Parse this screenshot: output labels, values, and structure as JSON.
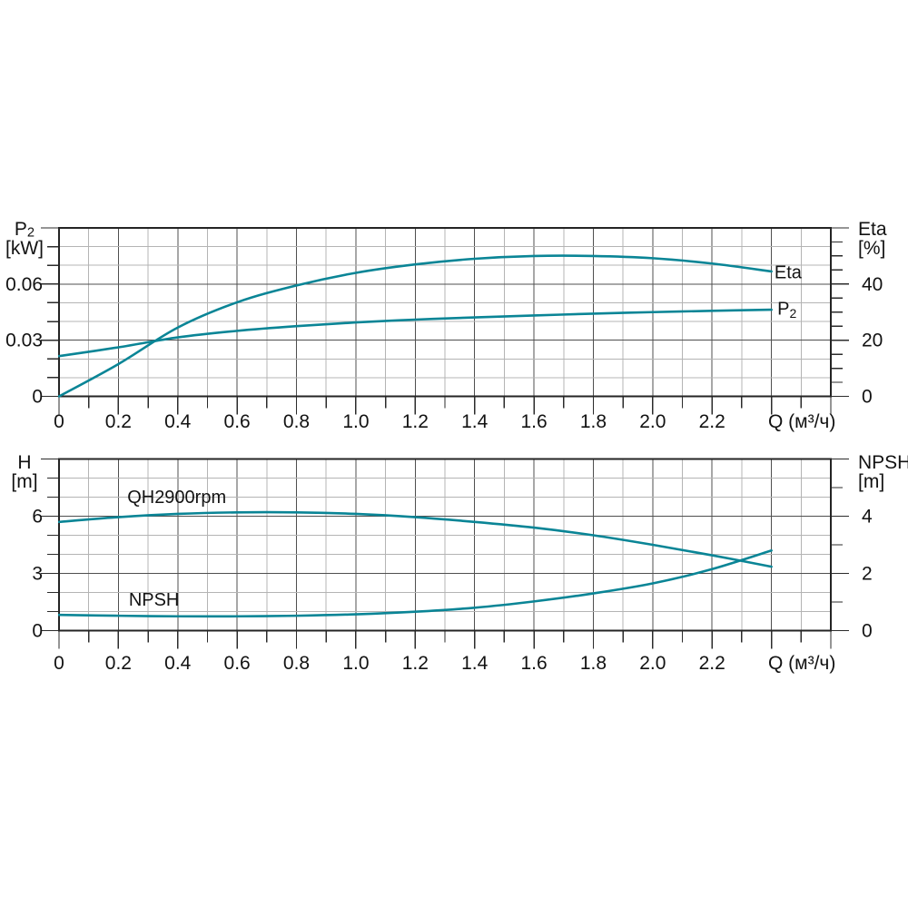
{
  "figure": {
    "background": "#ffffff",
    "curve_color": "#0a8596",
    "grid_minor_color": "#b4b4b4",
    "grid_major_color": "#4f4f4f",
    "border_color": "#242424",
    "tick_color": "#2b2b2b",
    "text_color": "#121212"
  },
  "chart_data": [
    {
      "type": "line",
      "name": "power-efficiency-chart",
      "x_axis": {
        "label": "Q (м³/ч)",
        "min": 0,
        "max": 2.6,
        "minor_step": 0.1,
        "major_step": 0.2,
        "ticks": [
          {
            "v": 0,
            "t": "0"
          },
          {
            "v": 0.2,
            "t": "0.2"
          },
          {
            "v": 0.4,
            "t": "0.4"
          },
          {
            "v": 0.6,
            "t": "0.6"
          },
          {
            "v": 0.8,
            "t": "0.8"
          },
          {
            "v": 1.0,
            "t": "1.0"
          },
          {
            "v": 1.2,
            "t": "1.2"
          },
          {
            "v": 1.4,
            "t": "1.4"
          },
          {
            "v": 1.6,
            "t": "1.6"
          },
          {
            "v": 1.8,
            "t": "1.8"
          },
          {
            "v": 2.0,
            "t": "2.0"
          },
          {
            "v": 2.2,
            "t": "2.2"
          }
        ]
      },
      "left_axis": {
        "name_parts": [
          {
            "t": "P"
          },
          {
            "t": "2",
            "sub": true
          }
        ],
        "unit": "[kW]",
        "min": 0,
        "max": 0.09,
        "minor_step": 0.01,
        "ticks": [
          {
            "v": 0,
            "t": "0"
          },
          {
            "v": 0.03,
            "t": "0.03"
          },
          {
            "v": 0.06,
            "t": "0.06"
          }
        ]
      },
      "right_axis": {
        "name_parts": [
          {
            "t": "Eta"
          }
        ],
        "unit": "[%]",
        "min": 0,
        "max": 60,
        "minor_step": 5,
        "ticks": [
          {
            "v": 0,
            "t": "0"
          },
          {
            "v": 20,
            "t": "20"
          },
          {
            "v": 40,
            "t": "40"
          }
        ]
      },
      "series": [
        {
          "id": "eta-curve",
          "axis": "right",
          "label_parts": [
            {
              "t": "Eta"
            }
          ],
          "label_at": [
            2.41,
            44
          ],
          "x": [
            0,
            0.2,
            0.4,
            0.6,
            0.8,
            1.0,
            1.2,
            1.4,
            1.6,
            1.8,
            2.0,
            2.2,
            2.4
          ],
          "y": [
            0,
            11.5,
            24.5,
            33.5,
            39.5,
            44,
            47,
            49,
            50,
            50,
            49.2,
            47.3,
            44.5
          ]
        },
        {
          "id": "p2-curve",
          "axis": "left",
          "label_parts": [
            {
              "t": "P"
            },
            {
              "t": "2",
              "sub": true
            }
          ],
          "label_at": [
            2.42,
            0.0465
          ],
          "x": [
            0,
            0.2,
            0.4,
            0.6,
            0.8,
            1.0,
            1.2,
            1.4,
            1.6,
            1.8,
            2.0,
            2.2,
            2.4
          ],
          "y": [
            0.0215,
            0.0262,
            0.0315,
            0.035,
            0.0375,
            0.0395,
            0.041,
            0.0422,
            0.0432,
            0.0442,
            0.045,
            0.0457,
            0.0463
          ]
        }
      ]
    },
    {
      "type": "line",
      "name": "head-npsh-chart",
      "x_axis": {
        "label": "Q (м³/ч)",
        "min": 0,
        "max": 2.6,
        "minor_step": 0.1,
        "major_step": 0.2,
        "ticks": [
          {
            "v": 0,
            "t": "0"
          },
          {
            "v": 0.2,
            "t": "0.2"
          },
          {
            "v": 0.4,
            "t": "0.4"
          },
          {
            "v": 0.6,
            "t": "0.6"
          },
          {
            "v": 0.8,
            "t": "0.8"
          },
          {
            "v": 1.0,
            "t": "1.0"
          },
          {
            "v": 1.2,
            "t": "1.2"
          },
          {
            "v": 1.4,
            "t": "1.4"
          },
          {
            "v": 1.6,
            "t": "1.6"
          },
          {
            "v": 1.8,
            "t": "1.8"
          },
          {
            "v": 2.0,
            "t": "2.0"
          },
          {
            "v": 2.2,
            "t": "2.2"
          }
        ]
      },
      "left_axis": {
        "name_parts": [
          {
            "t": "H"
          }
        ],
        "unit": "[m]",
        "min": 0,
        "max": 9,
        "minor_step": 1,
        "ticks": [
          {
            "v": 0,
            "t": "0"
          },
          {
            "v": 3,
            "t": "3"
          },
          {
            "v": 6,
            "t": "6"
          }
        ]
      },
      "right_axis": {
        "name_parts": [
          {
            "t": "NPSH"
          }
        ],
        "unit": "[m]",
        "min": 0,
        "max": 6,
        "minor_step": 1,
        "ticks": [
          {
            "v": 0,
            "t": "0"
          },
          {
            "v": 2,
            "t": "2"
          },
          {
            "v": 4,
            "t": "4"
          }
        ]
      },
      "series": [
        {
          "id": "qh-curve",
          "axis": "left",
          "label_parts": [
            {
              "t": "QH2900rpm"
            }
          ],
          "label_at": [
            0.23,
            6.98
          ],
          "x": [
            0,
            0.2,
            0.4,
            0.6,
            0.8,
            1.0,
            1.2,
            1.4,
            1.6,
            1.8,
            2.0,
            2.2,
            2.4
          ],
          "y": [
            5.7,
            5.95,
            6.12,
            6.2,
            6.2,
            6.12,
            5.95,
            5.7,
            5.4,
            5.0,
            4.5,
            3.95,
            3.35
          ]
        },
        {
          "id": "npsh-curve",
          "axis": "right",
          "label_parts": [
            {
              "t": "NPSH"
            }
          ],
          "label_at": [
            0.235,
            1.06
          ],
          "x": [
            0,
            0.2,
            0.4,
            0.6,
            0.8,
            1.0,
            1.2,
            1.4,
            1.6,
            1.8,
            2.0,
            2.2,
            2.4
          ],
          "y": [
            0.55,
            0.52,
            0.5,
            0.5,
            0.52,
            0.57,
            0.66,
            0.8,
            1.02,
            1.3,
            1.65,
            2.15,
            2.8
          ]
        }
      ]
    }
  ]
}
